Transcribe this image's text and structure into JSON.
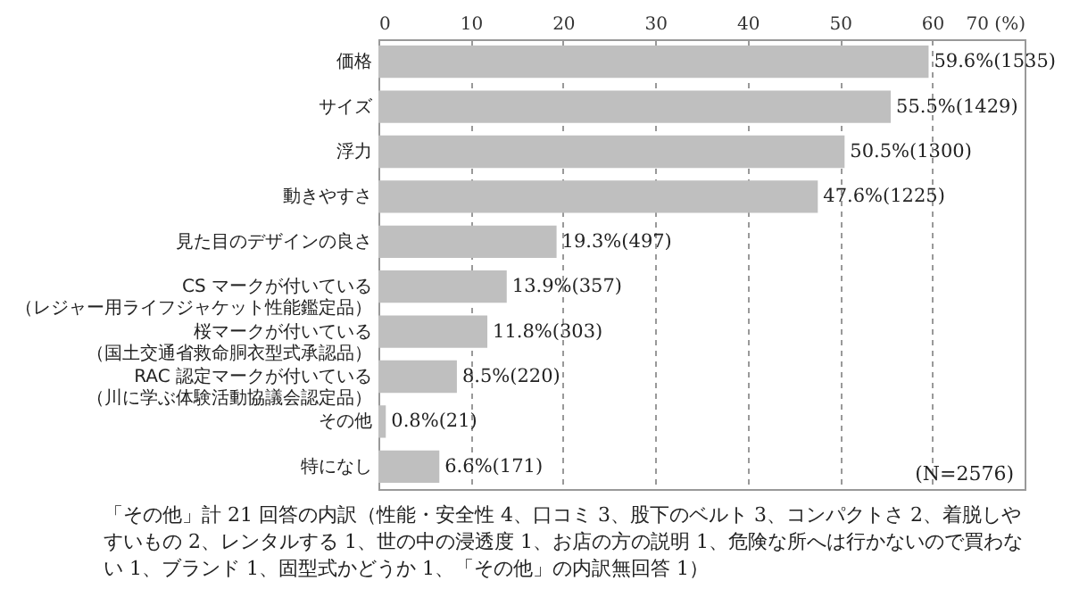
{
  "chart_data": {
    "type": "bar",
    "orientation": "horizontal",
    "categories": [
      "価格",
      "サイズ",
      "浮力",
      "動きやすさ",
      "見た目のデザインの良さ",
      "CS マークが付いている（レジャー用ライフジャケット性能鑑定品）",
      "桜マークが付いている（国土交通省救命胴衣型式承認品）",
      "RAC 認定マークが付いている（川に学ぶ体験活動協議会認定品）",
      "その他",
      "特になし"
    ],
    "series": [
      {
        "color": "#bfbfbf",
        "values": [
          59.6,
          55.5,
          50.5,
          47.6,
          19.3,
          13.9,
          11.8,
          8.5,
          0.8,
          6.6
        ],
        "value_labels": [
          "59.6%(1535)",
          "55.5%(1429)",
          "50.5%(1300)",
          "47.6%(1225)",
          "19.3%(497)",
          "13.9%(357)",
          "11.8%(303)",
          "8.5%(220)",
          "0.8%(21)",
          "6.6%(171)"
        ]
      }
    ],
    "xlim": [
      0,
      70
    ],
    "xticks": [
      0,
      10,
      20,
      30,
      40,
      50,
      60,
      {
        "value": 70,
        "label": "70 (%)"
      }
    ],
    "grid": "x",
    "annotations": [
      "(N=2576)",
      "「その他」計 21 回答の内訳（性能・安全性 4、口コミ 3、股下のベルト 3、コンパクトさ 2、着脱しやすいもの 2、レンタルする 1、世の中の浸透度 1、お店の方の説明 1、危険な所へは行かないので買わない 1、ブランド 1、固型式かどうか 1、「その他」の内訳無回答 1）"
    ]
  }
}
